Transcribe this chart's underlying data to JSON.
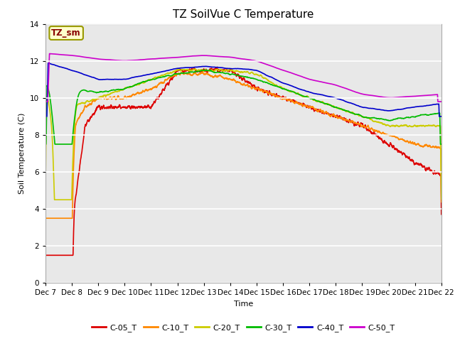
{
  "title": "TZ SoilVue C Temperature",
  "ylabel": "Soil Temperature (C)",
  "xlabel": "Time",
  "annotation": "TZ_sm",
  "ylim": [
    0,
    14
  ],
  "yticks": [
    0,
    2,
    4,
    6,
    8,
    10,
    12,
    14
  ],
  "xtick_labels": [
    "Dec 7",
    "Dec 8",
    "Dec 9",
    "Dec 10",
    "Dec 11",
    "Dec 12",
    "Dec 13",
    "Dec 14",
    "Dec 15",
    "Dec 16",
    "Dec 17",
    "Dec 18",
    "Dec 19",
    "Dec 20",
    "Dec 21",
    "Dec 22"
  ],
  "legend_labels": [
    "C-05_T",
    "C-10_T",
    "C-20_T",
    "C-30_T",
    "C-40_T",
    "C-50_T"
  ],
  "legend_colors": [
    "#dd0000",
    "#ff8800",
    "#cccc00",
    "#00bb00",
    "#0000cc",
    "#cc00cc"
  ],
  "background_color": "#ffffff",
  "plot_bg_color": "#e8e8e8",
  "title_fontsize": 11,
  "axis_fontsize": 8,
  "tick_fontsize": 7.5
}
